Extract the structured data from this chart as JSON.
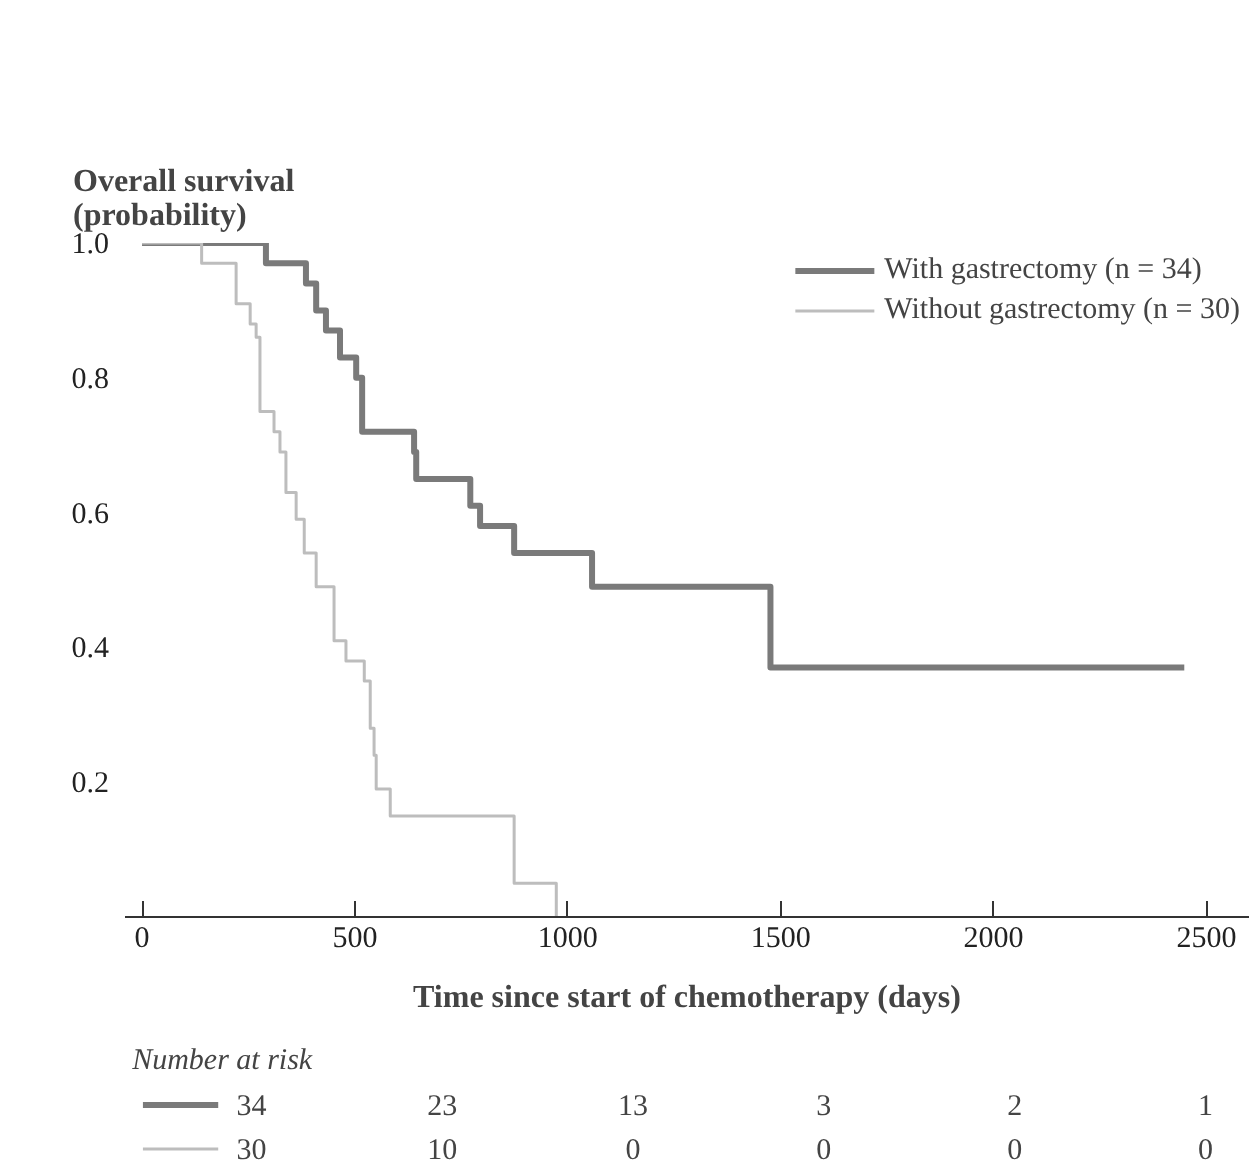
{
  "chart_data": {
    "type": "step",
    "ylabel": "Overall survival\n(probability)",
    "xlabel": "Time since start of chemotherapy (days)",
    "xlim": [
      -40,
      2600
    ],
    "ylim": [
      0,
      1.0
    ],
    "xticks": [
      0,
      500,
      1000,
      1500,
      2000,
      2500
    ],
    "yticks": [
      {
        "value": 0.2,
        "label": "0.2"
      },
      {
        "value": 0.4,
        "label": "0.4"
      },
      {
        "value": 0.6,
        "label": "0.6"
      },
      {
        "value": 0.8,
        "label": "0.8"
      },
      {
        "value": 1.0,
        "label": "1.0"
      }
    ],
    "series": [
      {
        "name": "With gastrectomy (n = 34)",
        "color": "#7a7a7a",
        "x": [
          0,
          291,
          385,
          409,
          432,
          465,
          503,
          517,
          639,
          644,
          771,
          794,
          874,
          1057,
          1476,
          2448
        ],
        "values": [
          1.0,
          0.97,
          0.94,
          0.9,
          0.87,
          0.83,
          0.8,
          0.72,
          0.69,
          0.65,
          0.61,
          0.58,
          0.54,
          0.49,
          0.37,
          0.37
        ]
      },
      {
        "name": "Without gastrectomy (n = 30)",
        "color": "#bdbdbd",
        "x": [
          0,
          140,
          221,
          254,
          268,
          277,
          310,
          324,
          338,
          362,
          381,
          409,
          451,
          479,
          522,
          536,
          545,
          550,
          583,
          874,
          973
        ],
        "values": [
          1.0,
          0.97,
          0.91,
          0.88,
          0.86,
          0.75,
          0.72,
          0.69,
          0.63,
          0.59,
          0.54,
          0.49,
          0.41,
          0.38,
          0.35,
          0.28,
          0.24,
          0.19,
          0.15,
          0.05,
          0
        ]
      }
    ],
    "annotations": [
      "Number at risk",
      "34",
      "23",
      "13",
      "3",
      "2",
      "1",
      "30",
      "10",
      "0",
      "0",
      "0",
      "0"
    ],
    "grid": false,
    "legend": "top right"
  }
}
